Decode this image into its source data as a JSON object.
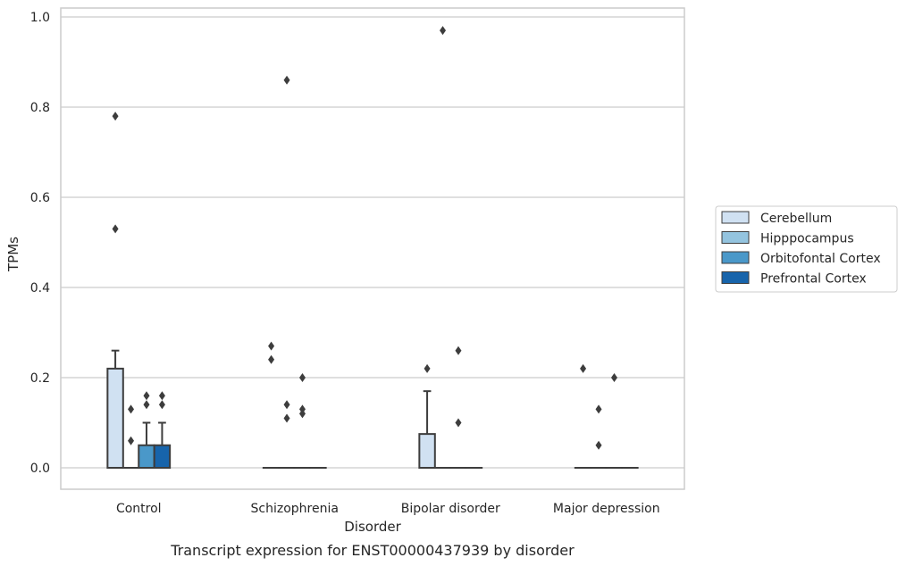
{
  "chart_data": {
    "type": "boxplot",
    "title": "",
    "caption": "Transcript expression for ENST00000437939 by disorder",
    "xlabel": "Disorder",
    "ylabel": "TPMs",
    "ylim": [
      -0.047,
      1.02
    ],
    "yticks": [
      0.0,
      0.2,
      0.4,
      0.6,
      0.8,
      1.0
    ],
    "ytick_labels": [
      "0.0",
      "0.2",
      "0.4",
      "0.6",
      "0.8",
      "1.0"
    ],
    "grid": true,
    "legend_placement": "right",
    "categories": [
      "Control",
      "Schizophrenia",
      "Bipolar disorder",
      "Major depression"
    ],
    "series": [
      {
        "name": "Cerebellum",
        "color": "#d0e1f2",
        "boxes": [
          {
            "q1": 0.0,
            "median": 0.0,
            "q3": 0.22,
            "whisker_low": 0.0,
            "whisker_high": 0.26,
            "outliers": [
              0.78,
              0.53
            ]
          },
          {
            "q1": 0.0,
            "median": 0.0,
            "q3": 0.0,
            "whisker_low": 0.0,
            "whisker_high": 0.0,
            "outliers": [
              0.27,
              0.24
            ]
          },
          {
            "q1": 0.0,
            "median": 0.0,
            "q3": 0.075,
            "whisker_low": 0.0,
            "whisker_high": 0.17,
            "outliers": [
              0.22
            ]
          },
          {
            "q1": 0.0,
            "median": 0.0,
            "q3": 0.0,
            "whisker_low": 0.0,
            "whisker_high": 0.0,
            "outliers": [
              0.22
            ]
          }
        ]
      },
      {
        "name": "Hipppocampus",
        "color": "#94c4df",
        "boxes": [
          {
            "q1": 0.0,
            "median": 0.0,
            "q3": 0.0,
            "whisker_low": 0.0,
            "whisker_high": 0.0,
            "outliers": [
              0.13,
              0.06
            ]
          },
          {
            "q1": 0.0,
            "median": 0.0,
            "q3": 0.0,
            "whisker_low": 0.0,
            "whisker_high": 0.0,
            "outliers": [
              0.86,
              0.14,
              0.11
            ]
          },
          {
            "q1": 0.0,
            "median": 0.0,
            "q3": 0.0,
            "whisker_low": 0.0,
            "whisker_high": 0.0,
            "outliers": [
              0.97
            ]
          },
          {
            "q1": 0.0,
            "median": 0.0,
            "q3": 0.0,
            "whisker_low": 0.0,
            "whisker_high": 0.0,
            "outliers": [
              0.13,
              0.05
            ]
          }
        ]
      },
      {
        "name": "Orbitofontal Cortex",
        "color": "#4a98c9",
        "boxes": [
          {
            "q1": 0.0,
            "median": 0.0,
            "q3": 0.05,
            "whisker_low": 0.0,
            "whisker_high": 0.1,
            "outliers": [
              0.16,
              0.14
            ]
          },
          {
            "q1": 0.0,
            "median": 0.0,
            "q3": 0.0,
            "whisker_low": 0.0,
            "whisker_high": 0.0,
            "outliers": [
              0.2,
              0.13,
              0.12
            ]
          },
          {
            "q1": 0.0,
            "median": 0.0,
            "q3": 0.0,
            "whisker_low": 0.0,
            "whisker_high": 0.0,
            "outliers": [
              0.26,
              0.1
            ]
          },
          {
            "q1": 0.0,
            "median": 0.0,
            "q3": 0.0,
            "whisker_low": 0.0,
            "whisker_high": 0.0,
            "outliers": [
              0.2
            ]
          }
        ]
      },
      {
        "name": "Prefrontal Cortex",
        "color": "#1764ab",
        "boxes": [
          {
            "q1": 0.0,
            "median": 0.0,
            "q3": 0.05,
            "whisker_low": 0.0,
            "whisker_high": 0.1,
            "outliers": [
              0.16,
              0.14
            ]
          },
          {
            "q1": 0.0,
            "median": 0.0,
            "q3": 0.0,
            "whisker_low": 0.0,
            "whisker_high": 0.0,
            "outliers": []
          },
          {
            "q1": 0.0,
            "median": 0.0,
            "q3": 0.0,
            "whisker_low": 0.0,
            "whisker_high": 0.0,
            "outliers": []
          },
          {
            "q1": 0.0,
            "median": 0.0,
            "q3": 0.0,
            "whisker_low": 0.0,
            "whisker_high": 0.0,
            "outliers": []
          }
        ]
      }
    ]
  }
}
